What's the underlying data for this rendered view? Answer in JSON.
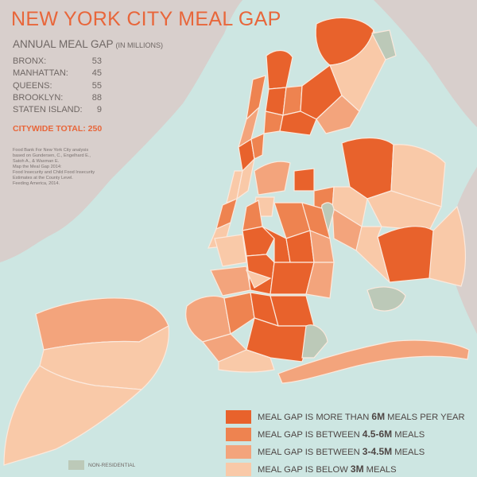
{
  "title": "NEW YORK CITY MEAL GAP",
  "subtitle": "ANNUAL MEAL GAP",
  "subtitle_unit": "(IN MILLIONS)",
  "boroughs": [
    {
      "name": "BRONX:",
      "value": "53"
    },
    {
      "name": "MANHATTAN:",
      "value": "45"
    },
    {
      "name": "QUEENS:",
      "value": "55"
    },
    {
      "name": "BROOKLYN:",
      "value": "88"
    },
    {
      "name": "STATEN ISLAND:",
      "value": "9"
    }
  ],
  "citywide_total": "CITYWIDE TOTAL: 250",
  "source_lines": [
    "Food Bank For New York City analysis",
    "based on Gundersen, C., Engelhard E.,",
    "Satoh A., & Waxman E.",
    "Map the Meal Gap 2014:",
    "Food Insecurity and Child Food Insecurity",
    "Estimates at the County Level.",
    "Feeding America, 2014."
  ],
  "legend": [
    {
      "prefix": "MEAL GAP IS MORE THAN ",
      "bold": "6M",
      "suffix": " MEALS PER YEAR",
      "color": "#e8622c"
    },
    {
      "prefix": "MEAL GAP IS BETWEEN ",
      "bold": "4.5-6M",
      "suffix": " MEALS",
      "color": "#ee8350"
    },
    {
      "prefix": "MEAL GAP IS BETWEEN ",
      "bold": "3-4.5M",
      "suffix": " MEALS",
      "color": "#f3a47c"
    },
    {
      "prefix": "MEAL GAP IS BELOW ",
      "bold": "3M",
      "suffix": " MEALS",
      "color": "#f9c9a8"
    }
  ],
  "non_residential": {
    "label": "NON-RESIDENTIAL",
    "color": "#bcc9b8"
  },
  "colors": {
    "water": "#cde6e2",
    "land": "#d8cfcc",
    "title": "#e8663a",
    "border": "#fbe9dd"
  }
}
